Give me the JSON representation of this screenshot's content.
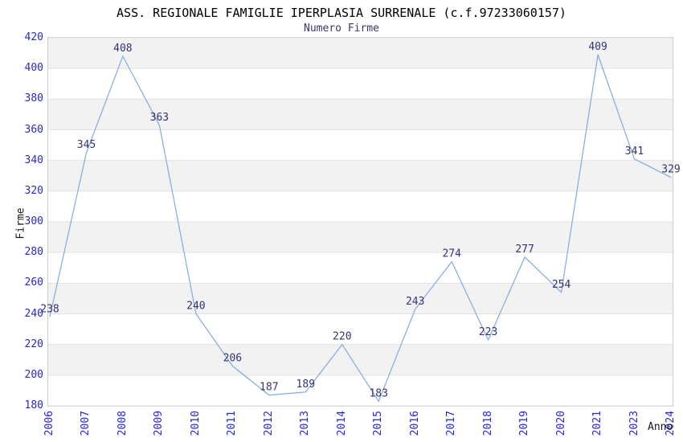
{
  "title": "ASS. REGIONALE FAMIGLIE IPERPLASIA SURRENALE (c.f.97233060157)",
  "subtitle": "Numero Firme",
  "chart_data": {
    "type": "line",
    "title": "ASS. REGIONALE FAMIGLIE IPERPLASIA SURRENALE (c.f.97233060157)",
    "subtitle": "Numero Firme",
    "xlabel": "Anno",
    "ylabel": "Firme",
    "categories": [
      "2006",
      "2007",
      "2008",
      "2009",
      "2010",
      "2011",
      "2012",
      "2013",
      "2014",
      "2015",
      "2016",
      "2017",
      "2018",
      "2019",
      "2020",
      "2021",
      "2023",
      "2024"
    ],
    "values": [
      238,
      345,
      408,
      363,
      240,
      206,
      187,
      189,
      220,
      183,
      243,
      274,
      223,
      277,
      254,
      409,
      341,
      329
    ],
    "ylim": [
      180,
      420
    ],
    "ytick_step": 20,
    "grid": true,
    "band_fill": "alternating-gray",
    "legend": "none",
    "markers": "none",
    "data_labels": "above-points"
  },
  "colors": {
    "background": "#FFFFFF",
    "line": "#7FABE3",
    "tick_label": "#2828CC",
    "data_label": "#333377",
    "title": "#000000",
    "subtitle": "#38386A",
    "axis_title": "#1A1A1A",
    "band": "#F2F2F2",
    "gridline": "#E2E2E2",
    "plot_border": "#CCCCCC"
  }
}
